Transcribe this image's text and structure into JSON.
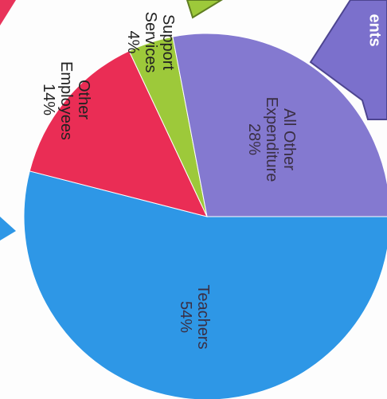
{
  "chart_data": {
    "type": "pie",
    "categories": [
      "Teachers",
      "Other Employees",
      "Support Services",
      "All Other Expenditure"
    ],
    "values": [
      54,
      14,
      4,
      28
    ],
    "value_labels": [
      "54%",
      "14%",
      "4%",
      "28%"
    ],
    "colors": [
      "#2e97e6",
      "#ea2d55",
      "#9dc93a",
      "#8479d0"
    ]
  },
  "decoration": {
    "arrow_label": "ents"
  }
}
